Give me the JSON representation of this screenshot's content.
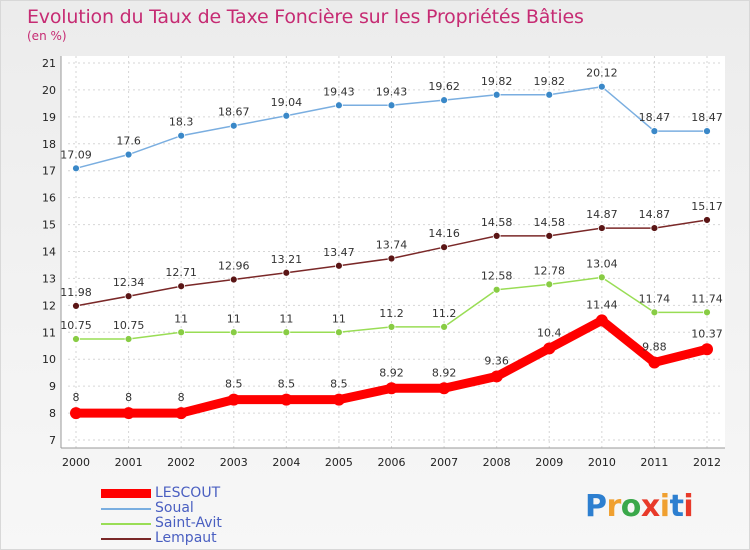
{
  "title": "Evolution du Taux de Taxe Foncière sur les Propriétés Bâties",
  "subtitle": "(en %)",
  "logo_text": "Proxiti",
  "chart_data": {
    "type": "line",
    "title": "Evolution du Taux de Taxe Foncière sur les Propriétés Bâties",
    "ylabel": "(en %)",
    "x": [
      "2000",
      "2001",
      "2002",
      "2003",
      "2004",
      "2005",
      "2006",
      "2007",
      "2008",
      "2009",
      "2010",
      "2011",
      "2012"
    ],
    "yticks": [
      7,
      8,
      9,
      10,
      11,
      12,
      13,
      14,
      15,
      16,
      17,
      18,
      19,
      20,
      21
    ],
    "ylim": [
      7,
      21
    ],
    "grid": true,
    "legend_position": "bottom-left",
    "series": [
      {
        "name": "LESCOUT",
        "color": "#ff0000",
        "marker_color": "#ff0000",
        "values": [
          8,
          8,
          8,
          8.5,
          8.5,
          8.5,
          8.92,
          8.92,
          9.36,
          10.4,
          11.44,
          9.88,
          10.37
        ],
        "labels": [
          "8",
          "8",
          "8",
          "8.5",
          "8.5",
          "8.5",
          "8.92",
          "8.92",
          "9.36",
          "10.4",
          "11.44",
          "9.88",
          "10.37"
        ]
      },
      {
        "name": "Soual",
        "color": "#7aaee0",
        "marker_color": "#3a88c8",
        "values": [
          17.09,
          17.6,
          18.3,
          18.67,
          19.04,
          19.43,
          19.43,
          19.62,
          19.82,
          19.82,
          20.12,
          18.47,
          18.47
        ],
        "labels": [
          "17.09",
          "17.6",
          "18.3",
          "18.67",
          "19.04",
          "19.43",
          "19.43",
          "19.62",
          "19.82",
          "19.82",
          "20.12",
          "18.47",
          "18.47"
        ]
      },
      {
        "name": "Saint-Avit",
        "color": "#99dd55",
        "marker_color": "#88cc44",
        "values": [
          10.75,
          10.75,
          11,
          11,
          11,
          11,
          11.2,
          11.2,
          12.58,
          12.78,
          13.04,
          11.74,
          11.74
        ],
        "labels": [
          "10.75",
          "10.75",
          "11",
          "11",
          "11",
          "11",
          "11.2",
          "11.2",
          "12.58",
          "12.78",
          "13.04",
          "11.74",
          "11.74"
        ]
      },
      {
        "name": "Lempaut",
        "color": "#7a2828",
        "marker_color": "#5a1515",
        "values": [
          11.98,
          12.34,
          12.71,
          12.96,
          13.21,
          13.47,
          13.74,
          14.16,
          14.58,
          14.58,
          14.87,
          14.87,
          15.17
        ],
        "labels": [
          "11.98",
          "12.34",
          "12.71",
          "12.96",
          "13.21",
          "13.47",
          "13.74",
          "14.16",
          "14.58",
          "14.58",
          "14.87",
          "14.87",
          "15.17"
        ]
      }
    ]
  }
}
